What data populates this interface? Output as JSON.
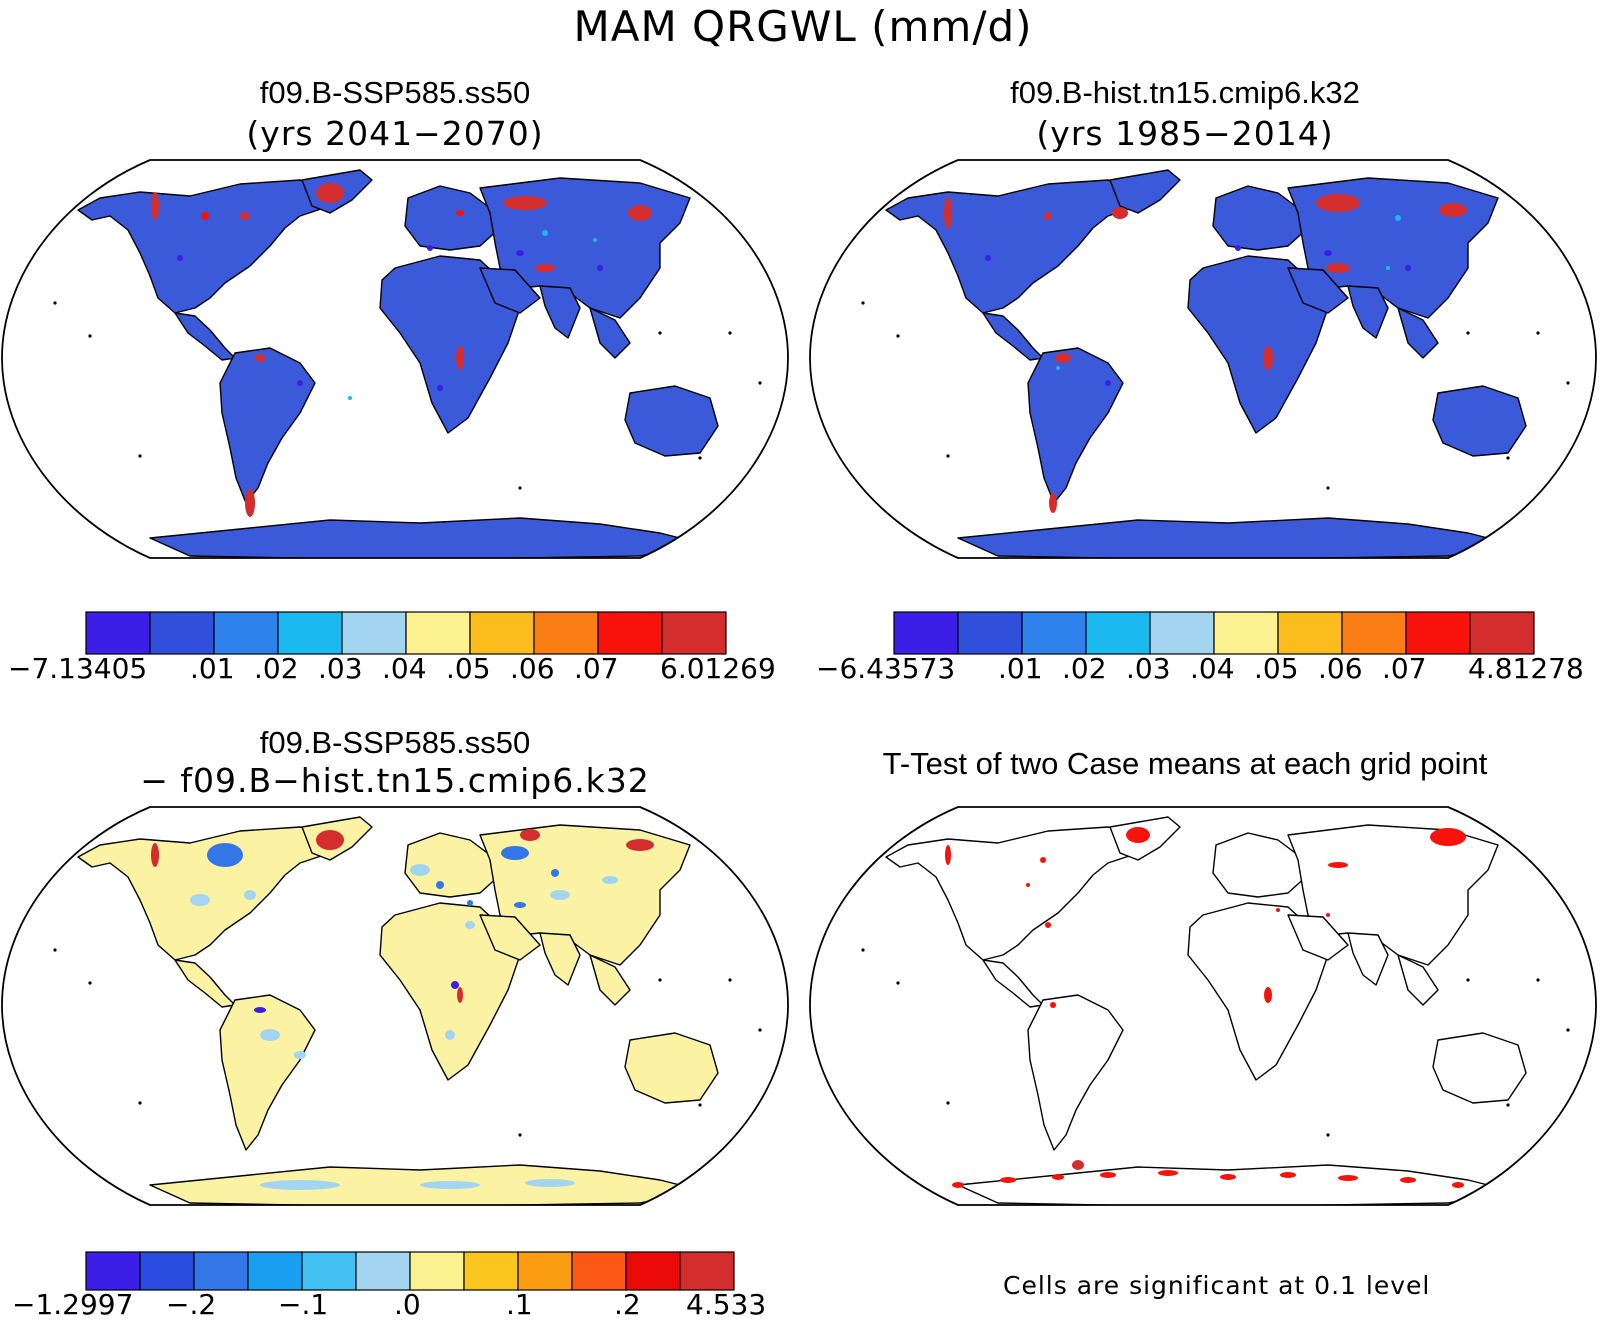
{
  "title": "MAM QRGWL (mm/d)",
  "panels": {
    "top_left": {
      "title": "f09.B-SSP585.ss50",
      "subtitle": "(yrs 2041−2070)"
    },
    "top_right": {
      "title": "f09.B-hist.tn15.cmip6.k32",
      "subtitle": "(yrs 1985−2014)"
    },
    "bottom_left": {
      "title": "f09.B-SSP585.ss50",
      "subtitle": "− f09.B−hist.tn15.cmip6.k32"
    },
    "bottom_right": {
      "title": "T-Test of two Case means at each grid point",
      "note": "Cells are significant at 0.1 level"
    }
  },
  "colorbars": {
    "top_left": {
      "colors": [
        "#3c1ee6",
        "#3050dc",
        "#2e80ea",
        "#1cb8f0",
        "#a3d5f0",
        "#fbf191",
        "#fbbd1e",
        "#fb7e15",
        "#f7120c",
        "#d32d2d"
      ],
      "labels": [
        "−7.13405",
        ".01",
        ".02",
        ".03",
        ".04",
        ".05",
        ".06",
        ".07",
        "6.01269"
      ]
    },
    "top_right": {
      "colors": [
        "#3c1ee6",
        "#3050dc",
        "#2e80ea",
        "#1cb8f0",
        "#a3d5f0",
        "#fbf191",
        "#fbbd1e",
        "#fb7e15",
        "#f7120c",
        "#d32d2d"
      ],
      "labels": [
        "−6.43573",
        ".01",
        ".02",
        ".03",
        ".04",
        ".05",
        ".06",
        ".07",
        "4.81278"
      ]
    },
    "bottom_left": {
      "colors": [
        "#3c1ee6",
        "#2a4de0",
        "#3276e8",
        "#189ff0",
        "#41c0f1",
        "#a3d5f0",
        "#fbf191",
        "#fbc51f",
        "#fb9d10",
        "#fb5815",
        "#eb0a0a",
        "#d32d2d"
      ],
      "labels": [
        "−1.2997",
        "−.2",
        "−.1",
        ".0",
        ".1",
        ".2",
        "4.533"
      ]
    }
  },
  "map_fills": {
    "top_left": "#3a5ad9",
    "top_right": "#3a5ad9",
    "bottom_left": "#fbf2a3",
    "bottom_right": "#ffffff"
  }
}
